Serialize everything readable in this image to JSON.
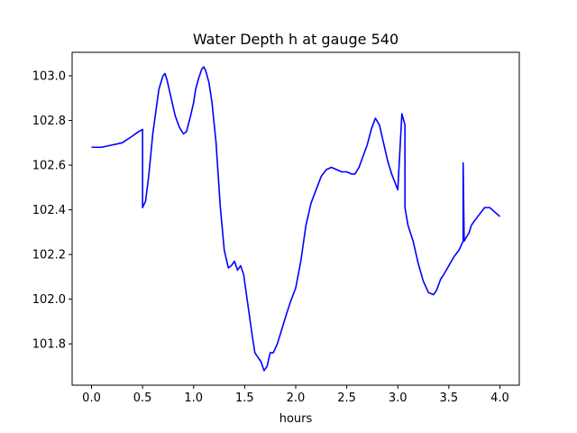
{
  "chart_data": {
    "type": "line",
    "title": "Water Depth h at gauge 540",
    "xlabel": "hours",
    "ylabel": "",
    "xlim": [
      -0.19,
      4.19
    ],
    "ylim": [
      101.615,
      103.105
    ],
    "xticks": [
      0.0,
      0.5,
      1.0,
      1.5,
      2.0,
      2.5,
      3.0,
      3.5,
      4.0
    ],
    "xtick_labels": [
      "0.0",
      "0.5",
      "1.0",
      "1.5",
      "2.0",
      "2.5",
      "3.0",
      "3.5",
      "4.0"
    ],
    "yticks": [
      101.8,
      102.0,
      102.2,
      102.4,
      102.6,
      102.8,
      103.0
    ],
    "ytick_labels": [
      "101.8",
      "102.0",
      "102.2",
      "102.4",
      "102.6",
      "102.8",
      "103.0"
    ],
    "grid": false,
    "series": [
      {
        "color": "#0000ff",
        "x": [
          0.0,
          0.1,
          0.2,
          0.3,
          0.4,
          0.46,
          0.5,
          0.5,
          0.53,
          0.56,
          0.6,
          0.63,
          0.66,
          0.68,
          0.7,
          0.72,
          0.74,
          0.77,
          0.82,
          0.86,
          0.9,
          0.93,
          0.97,
          1.0,
          1.02,
          1.05,
          1.08,
          1.1,
          1.12,
          1.15,
          1.18,
          1.22,
          1.26,
          1.3,
          1.34,
          1.37,
          1.4,
          1.43,
          1.46,
          1.49,
          1.53,
          1.57,
          1.6,
          1.63,
          1.66,
          1.69,
          1.72,
          1.75,
          1.78,
          1.82,
          1.86,
          1.9,
          1.95,
          2.0,
          2.05,
          2.1,
          2.15,
          2.2,
          2.25,
          2.3,
          2.35,
          2.4,
          2.45,
          2.5,
          2.55,
          2.58,
          2.62,
          2.66,
          2.7,
          2.74,
          2.78,
          2.82,
          2.86,
          2.9,
          2.94,
          3.0,
          3.04,
          3.04,
          3.07,
          3.07,
          3.1,
          3.15,
          3.2,
          3.25,
          3.3,
          3.35,
          3.38,
          3.42,
          3.45,
          3.5,
          3.55,
          3.6,
          3.64,
          3.64,
          3.65,
          3.7,
          3.72,
          3.75,
          3.8,
          3.85,
          3.9,
          3.95,
          4.0
        ],
        "y": [
          102.68,
          102.68,
          102.69,
          102.7,
          102.73,
          102.75,
          102.76,
          102.41,
          102.44,
          102.55,
          102.74,
          102.84,
          102.94,
          102.97,
          103.0,
          103.01,
          102.98,
          102.92,
          102.82,
          102.77,
          102.74,
          102.75,
          102.82,
          102.88,
          102.94,
          102.99,
          103.03,
          103.04,
          103.02,
          102.97,
          102.88,
          102.7,
          102.42,
          102.22,
          102.14,
          102.15,
          102.17,
          102.13,
          102.15,
          102.11,
          101.98,
          101.85,
          101.76,
          101.74,
          101.72,
          101.68,
          101.7,
          101.76,
          101.76,
          101.8,
          101.86,
          101.92,
          101.99,
          102.05,
          102.17,
          102.33,
          102.43,
          102.49,
          102.55,
          102.58,
          102.59,
          102.58,
          102.57,
          102.57,
          102.56,
          102.56,
          102.59,
          102.64,
          102.69,
          102.76,
          102.81,
          102.78,
          102.7,
          102.62,
          102.56,
          102.49,
          102.83,
          102.83,
          102.78,
          102.41,
          102.33,
          102.26,
          102.16,
          102.08,
          102.03,
          102.02,
          102.04,
          102.09,
          102.11,
          102.15,
          102.19,
          102.22,
          102.26,
          102.61,
          102.26,
          102.3,
          102.33,
          102.35,
          102.38,
          102.41,
          102.41,
          102.39,
          102.37
        ]
      }
    ]
  }
}
